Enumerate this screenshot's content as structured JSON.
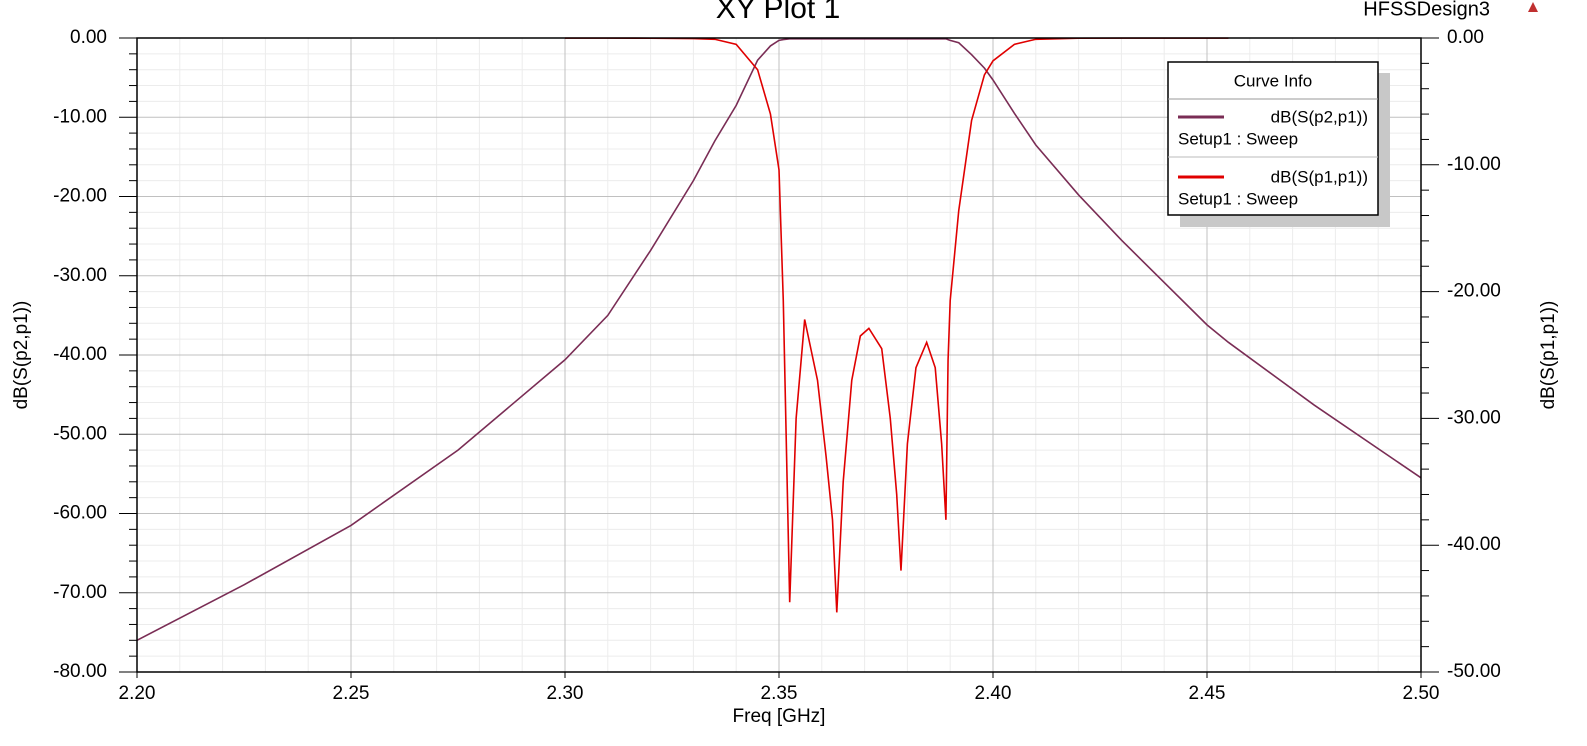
{
  "chart_data": {
    "type": "line",
    "title": "XY Plot 1",
    "design": "HFSSDesign3",
    "xlabel": "Freq [GHz]",
    "ylabel": "dB(S(p2,p1))",
    "y2label": "dB(S(p1,p1))",
    "legend_title": "Curve Info",
    "legend_position": "upper right",
    "grid": true,
    "x": [
      2.2,
      2.225,
      2.25,
      2.275,
      2.3,
      2.31,
      2.32,
      2.33,
      2.335,
      2.34,
      2.345,
      2.348,
      2.35,
      2.351,
      2.3525,
      2.354,
      2.356,
      2.359,
      2.361,
      2.3625,
      2.3635,
      2.365,
      2.367,
      2.369,
      2.371,
      2.374,
      2.376,
      2.3775,
      2.3785,
      2.38,
      2.382,
      2.3845,
      2.3865,
      2.388,
      2.389,
      2.3895,
      2.39,
      2.392,
      2.395,
      2.398,
      2.4,
      2.405,
      2.41,
      2.42,
      2.43,
      2.45,
      2.455,
      2.475,
      2.5
    ],
    "series": [
      {
        "name": "dB(S(p2,p1))",
        "setup": "Setup1 : Sweep",
        "color": "#7a2d55",
        "axis": "y",
        "values": [
          -76,
          -69,
          -61.5,
          -52,
          -40.6,
          -35,
          -26.8,
          -18,
          -13,
          -8.5,
          -2.8,
          -1,
          -0.3,
          -0.2,
          -0.1,
          -0.1,
          -0.1,
          -0.1,
          -0.1,
          -0.1,
          -0.1,
          -0.1,
          -0.1,
          -0.1,
          -0.1,
          -0.1,
          -0.1,
          -0.1,
          -0.1,
          -0.1,
          -0.1,
          -0.1,
          -0.1,
          -0.1,
          -0.1,
          -0.2,
          -0.3,
          -0.6,
          -2.1,
          -3.8,
          -5.3,
          -9.5,
          -13.5,
          -19.8,
          -25.5,
          -36.2,
          -38.4,
          -46.3,
          -55.5
        ]
      },
      {
        "name": "dB(S(p1,p1))",
        "setup": "Setup1 : Sweep",
        "color": "#e00000",
        "axis": "y2",
        "values": [
          null,
          null,
          null,
          null,
          -0.01,
          -0.01,
          -0.02,
          -0.05,
          -0.1,
          -0.5,
          -2.5,
          -6,
          -10.4,
          -20.7,
          -44.5,
          -30,
          -22.2,
          -27,
          -33,
          -38,
          -45.3,
          -35,
          -27,
          -23.5,
          -22.9,
          -24.5,
          -30,
          -36,
          -42,
          -32,
          -26,
          -24,
          -26,
          -32,
          -38,
          -25.4,
          -20.7,
          -13.6,
          -6.5,
          -2.9,
          -1.8,
          -0.5,
          -0.1,
          -0.02,
          -0.01,
          -0.01,
          -0.01,
          null,
          null
        ]
      }
    ],
    "xlim": [
      2.2,
      2.5
    ],
    "xticks": [
      {
        "value": 2.2,
        "label": "2.20"
      },
      {
        "value": 2.25,
        "label": "2.25"
      },
      {
        "value": 2.3,
        "label": "2.30"
      },
      {
        "value": 2.35,
        "label": "2.35"
      },
      {
        "value": 2.4,
        "label": "2.40"
      },
      {
        "value": 2.45,
        "label": "2.45"
      },
      {
        "value": 2.5,
        "label": "2.50"
      }
    ],
    "ylim": [
      -80,
      0
    ],
    "yticks": [
      {
        "value": 0,
        "label": "0.00"
      },
      {
        "value": -10,
        "label": "-10.00"
      },
      {
        "value": -20,
        "label": "-20.00"
      },
      {
        "value": -30,
        "label": "-30.00"
      },
      {
        "value": -40,
        "label": "-40.00"
      },
      {
        "value": -50,
        "label": "-50.00"
      },
      {
        "value": -60,
        "label": "-60.00"
      },
      {
        "value": -70,
        "label": "-70.00"
      },
      {
        "value": -80,
        "label": "-80.00"
      }
    ],
    "y2lim": [
      -50,
      0
    ],
    "y2ticks": [
      {
        "value": 0,
        "label": "0.00"
      },
      {
        "value": -10,
        "label": "-10.00"
      },
      {
        "value": -20,
        "label": "-20.00"
      },
      {
        "value": -30,
        "label": "-30.00"
      },
      {
        "value": -40,
        "label": "-40.00"
      },
      {
        "value": -50,
        "label": "-50.00"
      }
    ]
  }
}
